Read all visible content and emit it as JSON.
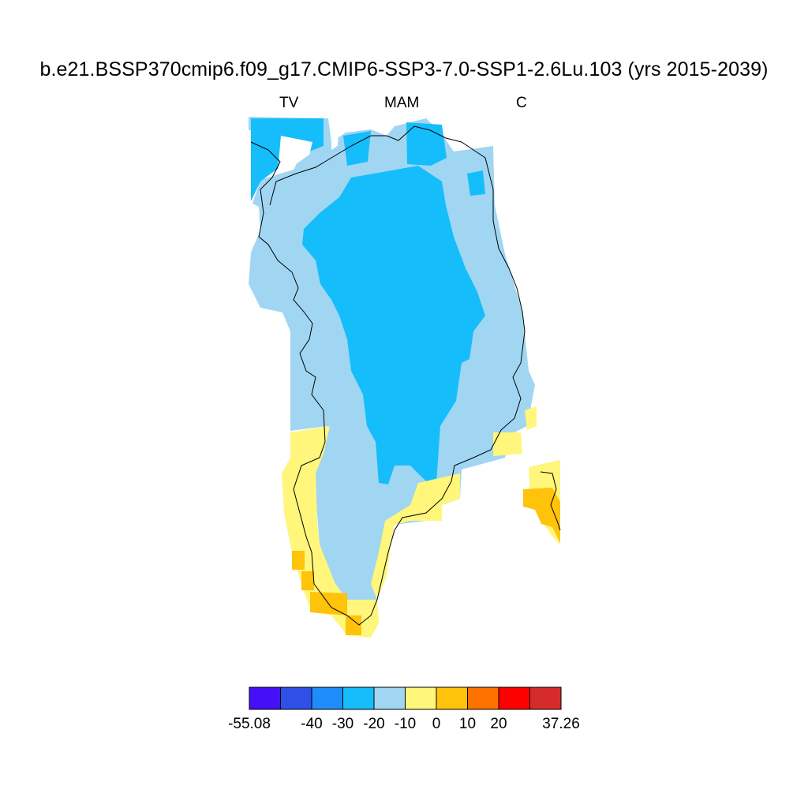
{
  "title": "b.e21.BSSP370cmip6.f09_g17.CMIP6-SSP3-7.0-SSP1-2.6Lu.103 (yrs 2015-2039)",
  "subtitle_left": "TV",
  "subtitle_center": "MAM",
  "subtitle_right": "C",
  "colorbar": {
    "colors": [
      "#4410f5",
      "#2f50e6",
      "#1e8cf9",
      "#16bdfb",
      "#a1d6f2",
      "#fff67b",
      "#fec30a",
      "#fe7200",
      "#fd0000",
      "#d52b2b"
    ],
    "labels": [
      "-55.08",
      "-40",
      "-30",
      "-20",
      "-10",
      "0",
      "10",
      "20",
      "37.26"
    ]
  }
}
